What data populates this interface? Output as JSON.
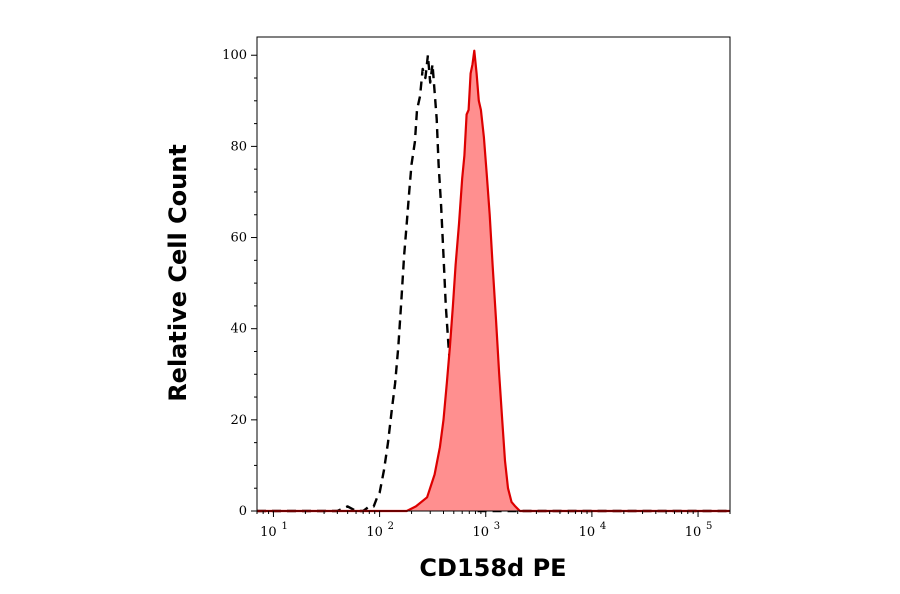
{
  "chart_data": {
    "type": "area",
    "xlabel": "CD158d PE",
    "ylabel": "Relative Cell Count",
    "x_scale": "log",
    "xlim": [
      7,
      200000
    ],
    "ylim": [
      0,
      104
    ],
    "x_ticks": [
      {
        "base": "10",
        "exp": "1",
        "value": 10
      },
      {
        "base": "10",
        "exp": "2",
        "value": 100
      },
      {
        "base": "10",
        "exp": "3",
        "value": 1000
      },
      {
        "base": "10",
        "exp": "4",
        "value": 10000
      },
      {
        "base": "10",
        "exp": "5",
        "value": 100000
      }
    ],
    "y_ticks": [
      "0",
      "20",
      "40",
      "60",
      "80",
      "100"
    ],
    "grid": false,
    "legend": "none",
    "series": [
      {
        "style": "dashed",
        "color": "#000000",
        "points": [
          [
            7,
            0
          ],
          [
            40,
            0
          ],
          [
            50,
            1
          ],
          [
            60,
            0
          ],
          [
            70,
            0
          ],
          [
            80,
            1
          ],
          [
            88,
            1
          ],
          [
            95,
            3
          ],
          [
            100,
            4
          ],
          [
            110,
            9
          ],
          [
            120,
            15
          ],
          [
            130,
            22
          ],
          [
            140,
            28
          ],
          [
            150,
            36
          ],
          [
            160,
            46
          ],
          [
            170,
            56
          ],
          [
            180,
            63
          ],
          [
            190,
            70
          ],
          [
            200,
            76
          ],
          [
            215,
            81
          ],
          [
            225,
            88
          ],
          [
            240,
            91
          ],
          [
            255,
            97
          ],
          [
            270,
            95
          ],
          [
            285,
            100
          ],
          [
            300,
            94
          ],
          [
            315,
            98
          ],
          [
            330,
            92
          ],
          [
            345,
            86
          ],
          [
            360,
            76
          ],
          [
            380,
            67
          ],
          [
            400,
            56
          ],
          [
            420,
            45
          ],
          [
            450,
            35
          ],
          [
            480,
            28
          ],
          [
            510,
            20
          ],
          [
            545,
            14
          ],
          [
            580,
            9
          ],
          [
            620,
            5
          ],
          [
            660,
            2
          ],
          [
            700,
            1
          ],
          [
            760,
            0
          ],
          [
            200000,
            0
          ]
        ]
      },
      {
        "style": "filled",
        "color": "#dd0000",
        "fill": "#ff8f8f",
        "points": [
          [
            7,
            0
          ],
          [
            150,
            0
          ],
          [
            180,
            0
          ],
          [
            220,
            1
          ],
          [
            280,
            3
          ],
          [
            330,
            8
          ],
          [
            370,
            14
          ],
          [
            400,
            20
          ],
          [
            430,
            28
          ],
          [
            460,
            36
          ],
          [
            490,
            45
          ],
          [
            520,
            54
          ],
          [
            560,
            63
          ],
          [
            600,
            73
          ],
          [
            630,
            78
          ],
          [
            660,
            87
          ],
          [
            690,
            88
          ],
          [
            720,
            96
          ],
          [
            750,
            98
          ],
          [
            780,
            101
          ],
          [
            820,
            96
          ],
          [
            860,
            90
          ],
          [
            900,
            88
          ],
          [
            960,
            82
          ],
          [
            1020,
            74
          ],
          [
            1090,
            65
          ],
          [
            1160,
            54
          ],
          [
            1250,
            42
          ],
          [
            1340,
            30
          ],
          [
            1430,
            20
          ],
          [
            1520,
            11
          ],
          [
            1620,
            5
          ],
          [
            1750,
            2
          ],
          [
            1900,
            1
          ],
          [
            2100,
            0
          ],
          [
            200000,
            0
          ]
        ]
      }
    ]
  }
}
